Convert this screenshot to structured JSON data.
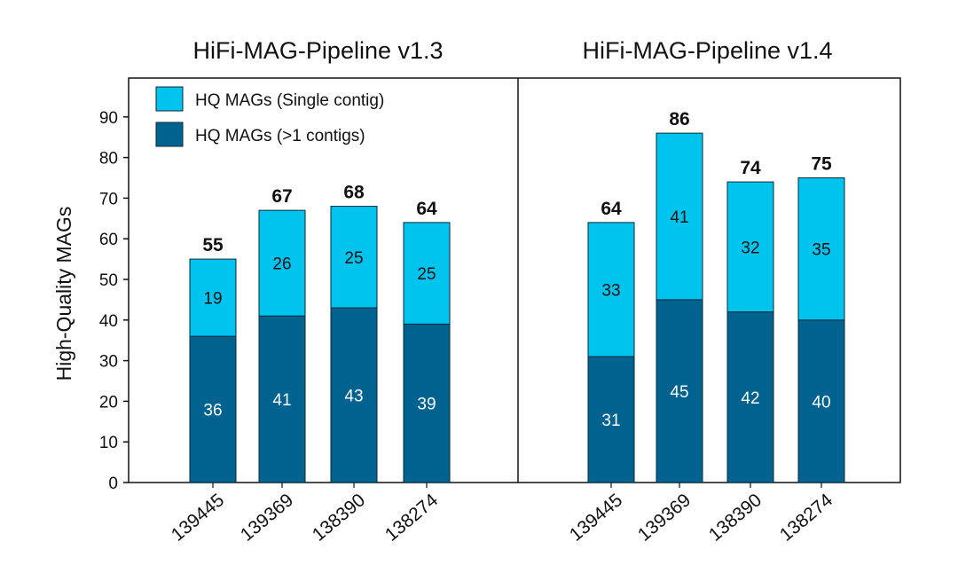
{
  "chart_data": {
    "type": "bar",
    "stacked": true,
    "ylabel": "High-Quality MAGs",
    "ylim": [
      0,
      100
    ],
    "yticks": [
      0,
      10,
      20,
      30,
      40,
      50,
      60,
      70,
      80,
      90
    ],
    "legend": {
      "placement": "top-left",
      "entries": [
        {
          "name": "HQ MAGs (Single contig)",
          "color": "#00c3ee"
        },
        {
          "name": "HQ MAGs (>1 contigs)",
          "color": "#00628f"
        }
      ]
    },
    "panels": [
      {
        "title": "HiFi-MAG-Pipeline v1.3",
        "categories": [
          "139445",
          "139369",
          "138390",
          "138274"
        ],
        "series": [
          {
            "name": "HQ MAGs (>1 contigs)",
            "values": [
              36,
              41,
              43,
              39
            ]
          },
          {
            "name": "HQ MAGs (Single contig)",
            "values": [
              19,
              26,
              25,
              25
            ]
          }
        ],
        "totals": [
          55,
          67,
          68,
          64
        ]
      },
      {
        "title": "HiFi-MAG-Pipeline v1.4",
        "categories": [
          "139445",
          "139369",
          "138390",
          "138274"
        ],
        "series": [
          {
            "name": "HQ MAGs (>1 contigs)",
            "values": [
              31,
              45,
              42,
              40
            ]
          },
          {
            "name": "HQ MAGs (Single contig)",
            "values": [
              33,
              41,
              32,
              35
            ]
          }
        ],
        "totals": [
          64,
          86,
          74,
          75
        ]
      }
    ]
  }
}
